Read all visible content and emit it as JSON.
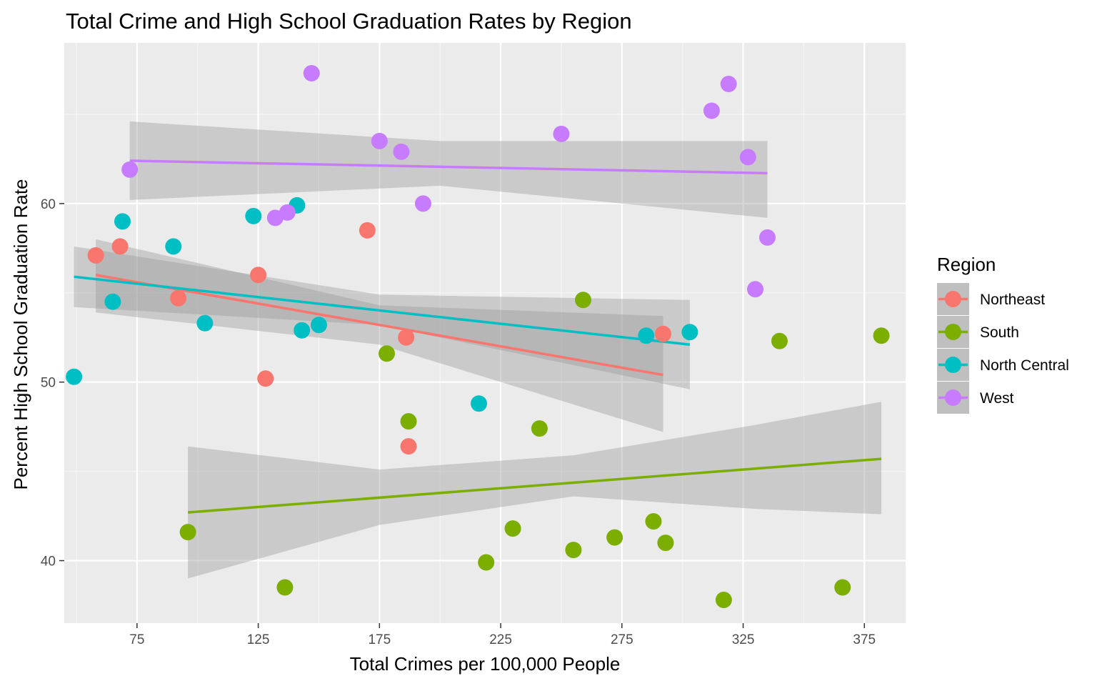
{
  "chart_data": {
    "type": "scatter",
    "title": "Total Crime and High School Graduation Rates by Region",
    "xlabel": "Total Crimes per 100,000 People",
    "ylabel": "Percent High School Graduation Rate",
    "xlim": [
      45,
      392
    ],
    "ylim": [
      36.5,
      69
    ],
    "x_ticks": [
      75,
      125,
      175,
      225,
      275,
      325,
      375
    ],
    "y_ticks": [
      40,
      50,
      60
    ],
    "grid": true,
    "legend": {
      "title": "Region",
      "placement": "right"
    },
    "series": [
      {
        "name": "Northeast",
        "color": "#F8766D",
        "points": [
          {
            "x": 58,
            "y": 57.1
          },
          {
            "x": 68,
            "y": 57.6
          },
          {
            "x": 92,
            "y": 54.7
          },
          {
            "x": 125,
            "y": 56.0
          },
          {
            "x": 128,
            "y": 50.2
          },
          {
            "x": 170,
            "y": 58.5
          },
          {
            "x": 186,
            "y": 52.5
          },
          {
            "x": 187,
            "y": 46.4
          },
          {
            "x": 292,
            "y": 52.7
          }
        ],
        "trend": {
          "x": [
            58,
            292
          ],
          "y": [
            56.0,
            50.4
          ]
        },
        "band": {
          "x": [
            58,
            175,
            292
          ],
          "lower": [
            53.9,
            52.1,
            47.2
          ],
          "upper": [
            58.0,
            54.3,
            53.7
          ]
        }
      },
      {
        "name": "South",
        "color": "#7CAE00",
        "points": [
          {
            "x": 96,
            "y": 41.6
          },
          {
            "x": 136,
            "y": 38.5
          },
          {
            "x": 178,
            "y": 51.6
          },
          {
            "x": 187,
            "y": 47.8
          },
          {
            "x": 219,
            "y": 39.9
          },
          {
            "x": 230,
            "y": 41.8
          },
          {
            "x": 241,
            "y": 47.4
          },
          {
            "x": 255,
            "y": 40.6
          },
          {
            "x": 259,
            "y": 54.6
          },
          {
            "x": 272,
            "y": 41.3
          },
          {
            "x": 288,
            "y": 42.2
          },
          {
            "x": 293,
            "y": 41.0
          },
          {
            "x": 317,
            "y": 37.8
          },
          {
            "x": 340,
            "y": 52.3
          },
          {
            "x": 366,
            "y": 38.5
          },
          {
            "x": 382,
            "y": 52.6
          }
        ],
        "trend": {
          "x": [
            96,
            382
          ],
          "y": [
            42.7,
            45.7
          ]
        },
        "band": {
          "x": [
            96,
            175,
            255,
            330,
            382
          ],
          "lower": [
            39.0,
            42.0,
            43.6,
            42.9,
            42.6
          ],
          "upper": [
            46.4,
            45.1,
            45.9,
            47.6,
            48.9
          ]
        }
      },
      {
        "name": "North Central",
        "color": "#00BFC4",
        "points": [
          {
            "x": 49,
            "y": 50.3
          },
          {
            "x": 65,
            "y": 54.5
          },
          {
            "x": 69,
            "y": 59.0
          },
          {
            "x": 90,
            "y": 57.6
          },
          {
            "x": 103,
            "y": 53.3
          },
          {
            "x": 123,
            "y": 59.3
          },
          {
            "x": 141,
            "y": 59.9
          },
          {
            "x": 143,
            "y": 52.9
          },
          {
            "x": 150,
            "y": 53.2
          },
          {
            "x": 216,
            "y": 48.8
          },
          {
            "x": 285,
            "y": 52.6
          },
          {
            "x": 303,
            "y": 52.8
          }
        ],
        "trend": {
          "x": [
            49,
            303
          ],
          "y": [
            55.9,
            52.1
          ]
        },
        "band": {
          "x": [
            49,
            175,
            303
          ],
          "lower": [
            54.2,
            53.2,
            49.6
          ],
          "upper": [
            57.6,
            54.9,
            54.6
          ]
        }
      },
      {
        "name": "West",
        "color": "#C77CFF",
        "points": [
          {
            "x": 72,
            "y": 61.9
          },
          {
            "x": 132,
            "y": 59.2
          },
          {
            "x": 137,
            "y": 59.5
          },
          {
            "x": 147,
            "y": 67.3
          },
          {
            "x": 175,
            "y": 63.5
          },
          {
            "x": 184,
            "y": 62.9
          },
          {
            "x": 193,
            "y": 60.0
          },
          {
            "x": 250,
            "y": 63.9
          },
          {
            "x": 312,
            "y": 65.2
          },
          {
            "x": 319,
            "y": 66.7
          },
          {
            "x": 327,
            "y": 62.6
          },
          {
            "x": 330,
            "y": 55.2
          },
          {
            "x": 335,
            "y": 58.1
          }
        ],
        "trend": {
          "x": [
            72,
            335
          ],
          "y": [
            62.4,
            61.7
          ]
        },
        "band": {
          "x": [
            72,
            200,
            335
          ],
          "lower": [
            60.2,
            61.0,
            59.2
          ],
          "upper": [
            64.6,
            63.5,
            63.5
          ]
        }
      }
    ]
  }
}
